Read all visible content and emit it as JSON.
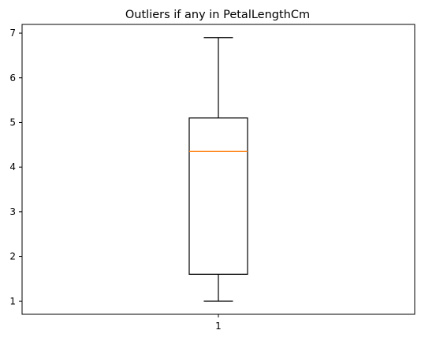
{
  "chart_data": {
    "type": "box",
    "title": "Outliers if any in PetalLengthCm",
    "xlabel": "",
    "ylabel": "",
    "x_ticks": [
      "1"
    ],
    "y_ticks": [
      "1",
      "2",
      "3",
      "4",
      "5",
      "6",
      "7"
    ],
    "ylim": [
      0.705,
      7.195
    ],
    "grid": false,
    "boxes": [
      {
        "label": "1",
        "whisker_low": 1.0,
        "q1": 1.6,
        "median": 4.35,
        "q3": 5.1,
        "whisker_high": 6.9,
        "outliers": []
      }
    ],
    "colors": {
      "box": "#000000",
      "median": "#ff7f0e",
      "axes": "#000000"
    }
  }
}
